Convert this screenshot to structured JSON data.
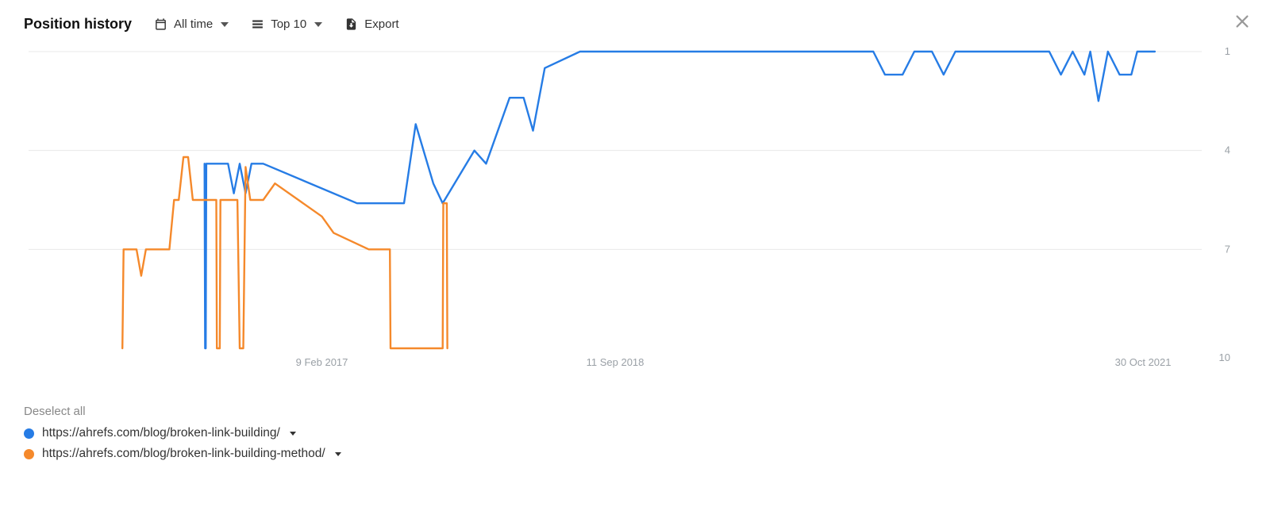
{
  "header": {
    "title": "Position history",
    "time_range_label": "All time",
    "top_label": "Top 10",
    "export_label": "Export"
  },
  "chart": {
    "type": "line",
    "background_color": "#ffffff",
    "grid_color": "#e8e8e8",
    "axis_text_color": "#9aa0a6",
    "axis_fontsize": 13,
    "line_width": 2.4,
    "plot": {
      "x_min": 0,
      "x_max": 100,
      "y_min": 1,
      "y_max": 10
    },
    "y_ticks": [
      1,
      4,
      7,
      10
    ],
    "y_tick_label_10": "10",
    "x_labels": [
      {
        "x": 25.0,
        "text": "9 Feb 2017"
      },
      {
        "x": 50.0,
        "text": "11 Sep 2018"
      },
      {
        "x": 95.0,
        "text": "30 Oct 2021"
      }
    ],
    "series": [
      {
        "name": "blue",
        "color": "#267ce5",
        "points": [
          [
            15.0,
            4.4
          ],
          [
            15.05,
            10.0
          ],
          [
            15.1,
            10.0
          ],
          [
            15.15,
            4.4
          ],
          [
            17.0,
            4.4
          ],
          [
            17.5,
            5.3
          ],
          [
            18.0,
            4.4
          ],
          [
            18.5,
            5.3
          ],
          [
            19.0,
            4.4
          ],
          [
            20.0,
            4.4
          ],
          [
            28.0,
            5.6
          ],
          [
            32.0,
            5.6
          ],
          [
            33.0,
            3.2
          ],
          [
            34.5,
            5.0
          ],
          [
            35.3,
            5.6
          ],
          [
            38.0,
            4.0
          ],
          [
            39.0,
            4.4
          ],
          [
            41.0,
            2.4
          ],
          [
            42.2,
            2.4
          ],
          [
            43.0,
            3.4
          ],
          [
            44.0,
            1.5
          ],
          [
            47.0,
            1.0
          ],
          [
            72.0,
            1.0
          ],
          [
            73.0,
            1.7
          ],
          [
            74.5,
            1.7
          ],
          [
            75.5,
            1.0
          ],
          [
            77.0,
            1.0
          ],
          [
            78.0,
            1.7
          ],
          [
            79.0,
            1.0
          ],
          [
            87.0,
            1.0
          ],
          [
            88.0,
            1.7
          ],
          [
            89.0,
            1.0
          ],
          [
            90.0,
            1.7
          ],
          [
            90.5,
            1.0
          ],
          [
            91.2,
            2.5
          ],
          [
            92.0,
            1.0
          ],
          [
            93.0,
            1.7
          ],
          [
            94.0,
            1.7
          ],
          [
            94.5,
            1.0
          ],
          [
            96.0,
            1.0
          ]
        ]
      },
      {
        "name": "orange",
        "color": "#f5892b",
        "points": [
          [
            8.0,
            10.0
          ],
          [
            8.1,
            7.0
          ],
          [
            9.2,
            7.0
          ],
          [
            9.6,
            7.8
          ],
          [
            10.0,
            7.0
          ],
          [
            12.0,
            7.0
          ],
          [
            12.4,
            5.5
          ],
          [
            12.8,
            5.5
          ],
          [
            13.2,
            4.2
          ],
          [
            13.6,
            4.2
          ],
          [
            14.0,
            5.5
          ],
          [
            16.0,
            5.5
          ],
          [
            16.05,
            10.0
          ],
          [
            16.3,
            10.0
          ],
          [
            16.35,
            5.5
          ],
          [
            17.8,
            5.5
          ],
          [
            18.0,
            10.0
          ],
          [
            18.3,
            10.0
          ],
          [
            18.5,
            4.5
          ],
          [
            18.9,
            5.5
          ],
          [
            20.0,
            5.5
          ],
          [
            21.0,
            5.0
          ],
          [
            25.0,
            6.0
          ],
          [
            26.0,
            6.5
          ],
          [
            29.0,
            7.0
          ],
          [
            30.8,
            7.0
          ],
          [
            30.85,
            10.0
          ],
          [
            35.3,
            10.0
          ],
          [
            35.35,
            5.6
          ],
          [
            35.65,
            5.6
          ],
          [
            35.7,
            10.0
          ]
        ]
      }
    ]
  },
  "legend": {
    "deselect_label": "Deselect all",
    "items": [
      {
        "color": "#267ce5",
        "label": "https://ahrefs.com/blog/broken-link-building/"
      },
      {
        "color": "#f5892b",
        "label": "https://ahrefs.com/blog/broken-link-building-method/"
      }
    ]
  }
}
